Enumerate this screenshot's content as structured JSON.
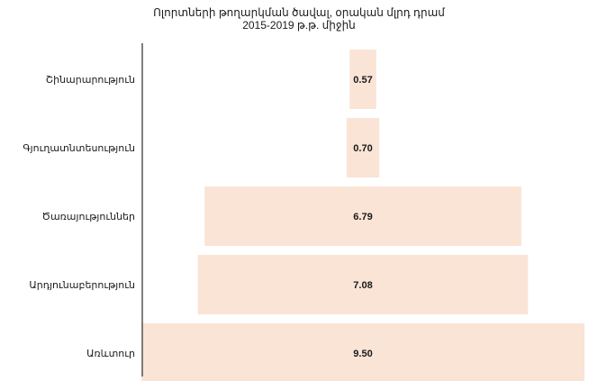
{
  "chart_data": {
    "type": "bar",
    "orientation": "horizontal-funnel",
    "title": "Ոլորտների թողարկման ծավալ, օրական մլրդ դրամ",
    "subtitle": "2015-2019 թ.թ. միջին",
    "categories": [
      "Շինարարություն",
      "Գյուղատնտեսություն",
      "Ծառայություններ",
      "Արդյունաբերություն",
      "Առևտուր"
    ],
    "values": [
      0.57,
      0.7,
      6.79,
      7.08,
      9.5
    ],
    "value_labels": [
      "0.57",
      "0.70",
      "6.79",
      "7.08",
      "9.50"
    ],
    "bar_color": "#fae4d6",
    "xlim": [
      0,
      9.5
    ],
    "grid": false,
    "legend": "none"
  }
}
